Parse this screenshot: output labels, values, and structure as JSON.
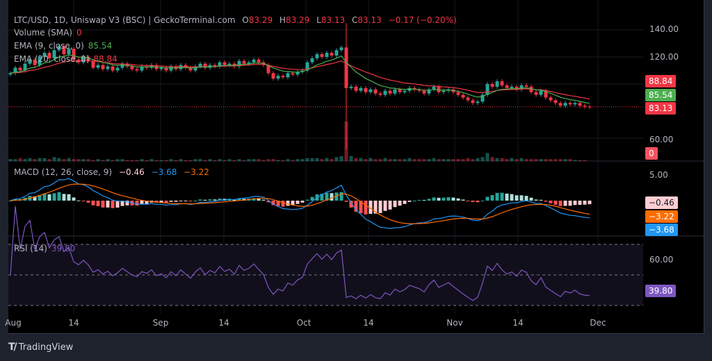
{
  "header": {
    "symbol": "LTC/USD, 1D, Uniswap V3 (BSC) | GeckoTerminal.com",
    "open_label": "O",
    "open": "83.29",
    "high_label": "H",
    "high": "83.29",
    "low_label": "L",
    "low": "83.13",
    "close_label": "C",
    "close": "83.13",
    "change": "−0.17 (−0.20%)"
  },
  "volume_legend": {
    "label": "Volume (SMA)",
    "value": "0"
  },
  "ema9_legend": {
    "label": "EMA (9, close, 0)",
    "value": "85.54"
  },
  "ema20_legend": {
    "label": "EMA (20, close, 0)",
    "value": "88.84"
  },
  "macd_legend": {
    "label": "MACD (12, 26, close, 9)",
    "hist": "−0.46",
    "macd": "−3.68",
    "signal": "−3.22"
  },
  "rsi_legend": {
    "label": "RSI (14)",
    "value": "39.80"
  },
  "price_axis": [
    "140.00",
    "120.00",
    "60.00"
  ],
  "macd_axis": [
    "5.00"
  ],
  "rsi_axis": [
    "60.00"
  ],
  "badges": {
    "ema20": "88.84",
    "ema9": "85.54",
    "last_price": "83.13",
    "volume": "0",
    "macd_hist": "−0.46",
    "macd_signal": "−3.22",
    "macd_line": "−3.68",
    "rsi": "39.80"
  },
  "time_axis": [
    "Aug",
    "14",
    "Sep",
    "14",
    "Oct",
    "14",
    "Nov",
    "14",
    "Dec"
  ],
  "brand": "TradingView",
  "colors": {
    "up": "#26a69a",
    "down": "#f23645",
    "ema9": "#4caf50",
    "ema20": "#f23645",
    "macd": "#2196f3",
    "signal": "#ff6d00",
    "rsi": "#7e57c2"
  },
  "chart_data": {
    "type": "candlestick",
    "start_date": "Aug 1",
    "interval": "1D",
    "closes": [
      108,
      112,
      110,
      115,
      118,
      114,
      120,
      123,
      119,
      125,
      128,
      122,
      126,
      118,
      116,
      120,
      117,
      112,
      114,
      111,
      113,
      110,
      112,
      115,
      113,
      111,
      110,
      113,
      112,
      114,
      111,
      112,
      110,
      113,
      111,
      114,
      112,
      110,
      113,
      115,
      112,
      114,
      113,
      116,
      114,
      115,
      113,
      117,
      115,
      116,
      118,
      116,
      114,
      108,
      104,
      106,
      105,
      108,
      107,
      109,
      110,
      116,
      119,
      122,
      120,
      123,
      121,
      125,
      127,
      97,
      98,
      95,
      97,
      94,
      96,
      93,
      92,
      95,
      93,
      96,
      94,
      95,
      97,
      96,
      95,
      93,
      96,
      98,
      94,
      95,
      96,
      94,
      92,
      90,
      88,
      86,
      87,
      92,
      100,
      98,
      102,
      99,
      97,
      98,
      96,
      99,
      98,
      94,
      92,
      95,
      90,
      88,
      86,
      84,
      86,
      85,
      86,
      84,
      83.29,
      83.13
    ],
    "volumes": [
      2,
      2,
      3,
      2,
      3,
      2,
      3,
      3,
      2,
      4,
      3,
      2,
      3,
      2,
      2,
      2,
      2,
      1,
      2,
      1,
      2,
      1,
      2,
      2,
      1,
      1,
      1,
      2,
      1,
      2,
      1,
      1,
      1,
      2,
      1,
      2,
      1,
      1,
      2,
      2,
      1,
      2,
      1,
      2,
      1,
      2,
      1,
      2,
      1,
      2,
      2,
      2,
      1,
      2,
      2,
      1,
      1,
      2,
      1,
      2,
      2,
      3,
      3,
      3,
      2,
      3,
      2,
      4,
      5,
      40,
      5,
      3,
      3,
      2,
      3,
      2,
      2,
      3,
      2,
      2,
      2,
      2,
      3,
      2,
      2,
      2,
      2,
      3,
      2,
      2,
      2,
      2,
      2,
      2,
      3,
      2,
      3,
      4,
      8,
      4,
      3,
      3,
      2,
      3,
      2,
      3,
      2,
      2,
      2,
      2,
      2,
      2,
      2,
      2,
      2,
      2,
      1,
      1,
      1,
      0
    ],
    "spike": {
      "date": "Oct 9",
      "high": 145,
      "low": 52
    },
    "price_range": [
      50,
      145
    ],
    "price_ticks": [
      140,
      120,
      60
    ],
    "macd_ticks": [
      5
    ],
    "rsi_ticks": [
      60
    ],
    "rsi_bands": [
      70,
      50,
      30
    ],
    "last_price": 83.13
  }
}
